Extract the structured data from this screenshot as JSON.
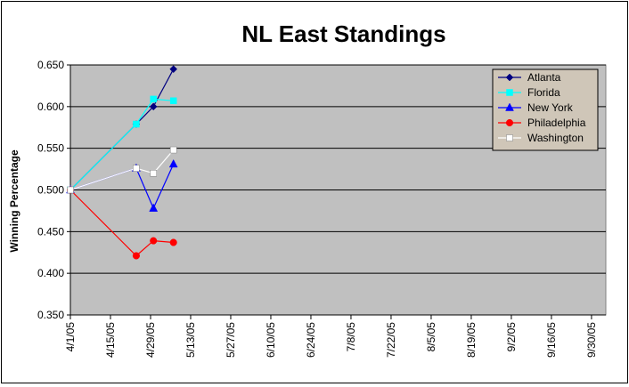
{
  "chart_data": {
    "type": "line",
    "title": "NL East Standings",
    "xlabel": "",
    "ylabel": "Winning Percentage",
    "ylim": [
      0.35,
      0.65
    ],
    "y_ticks": [
      "0.350",
      "0.400",
      "0.450",
      "0.500",
      "0.550",
      "0.600",
      "0.650"
    ],
    "x_range": [
      "2005-04-01",
      "2005-10-05"
    ],
    "x_ticks": [
      {
        "date": "2005-04-01",
        "label": "4/1/05"
      },
      {
        "date": "2005-04-15",
        "label": "4/15/05"
      },
      {
        "date": "2005-04-29",
        "label": "4/29/05"
      },
      {
        "date": "2005-05-13",
        "label": "5/13/05"
      },
      {
        "date": "2005-05-27",
        "label": "5/27/05"
      },
      {
        "date": "2005-06-10",
        "label": "6/10/05"
      },
      {
        "date": "2005-06-24",
        "label": "6/24/05"
      },
      {
        "date": "2005-07-08",
        "label": "7/8/05"
      },
      {
        "date": "2005-07-22",
        "label": "7/22/05"
      },
      {
        "date": "2005-08-05",
        "label": "8/5/05"
      },
      {
        "date": "2005-08-19",
        "label": "8/19/05"
      },
      {
        "date": "2005-09-02",
        "label": "9/2/05"
      },
      {
        "date": "2005-09-16",
        "label": "9/16/05"
      },
      {
        "date": "2005-09-30",
        "label": "9/30/05"
      }
    ],
    "grid": true,
    "legend_position": "top-right",
    "plot_background": "#c0c0c0",
    "series": [
      {
        "name": "Atlanta",
        "color": "#000080",
        "marker": "diamond",
        "points": [
          [
            "2005-04-01",
            0.5
          ],
          [
            "2005-04-24",
            0.579
          ],
          [
            "2005-04-30",
            0.6
          ],
          [
            "2005-05-07",
            0.645
          ]
        ]
      },
      {
        "name": "Florida",
        "color": "#00ffff",
        "marker": "square",
        "points": [
          [
            "2005-04-01",
            0.5
          ],
          [
            "2005-04-24",
            0.579
          ],
          [
            "2005-04-30",
            0.609
          ],
          [
            "2005-05-07",
            0.607
          ]
        ]
      },
      {
        "name": "New York",
        "color": "#0000ff",
        "marker": "triangle",
        "points": [
          [
            "2005-04-01",
            0.5
          ],
          [
            "2005-04-24",
            0.526
          ],
          [
            "2005-04-30",
            0.478
          ],
          [
            "2005-05-07",
            0.531
          ]
        ]
      },
      {
        "name": "Philadelphia",
        "color": "#ff0000",
        "marker": "circle",
        "points": [
          [
            "2005-04-01",
            0.5
          ],
          [
            "2005-04-24",
            0.421
          ],
          [
            "2005-04-30",
            0.439
          ],
          [
            "2005-05-07",
            0.437
          ]
        ]
      },
      {
        "name": "Washington",
        "color": "#ffffff",
        "marker": "square",
        "points": [
          [
            "2005-04-01",
            0.5
          ],
          [
            "2005-04-24",
            0.526
          ],
          [
            "2005-04-30",
            0.52
          ],
          [
            "2005-05-07",
            0.548
          ]
        ]
      }
    ]
  }
}
